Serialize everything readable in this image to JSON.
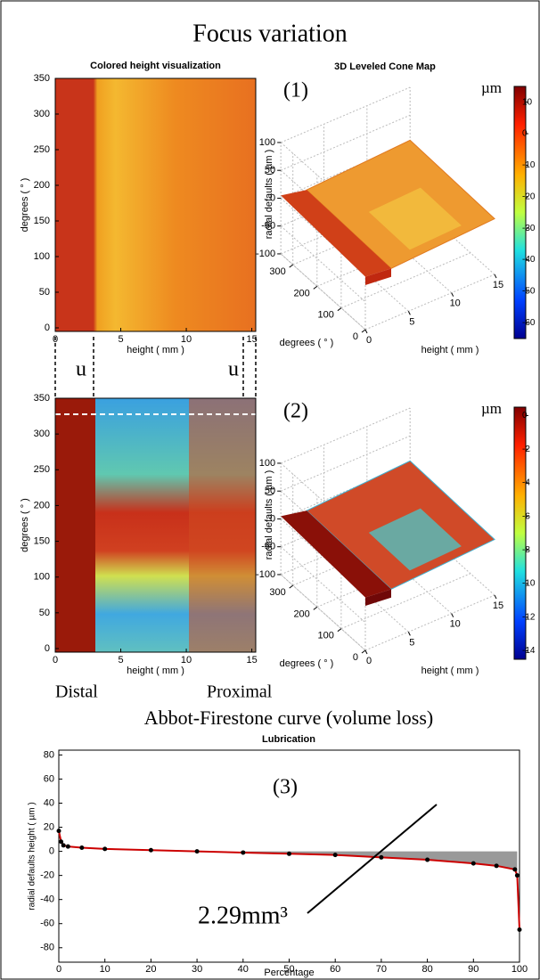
{
  "title": "Focus variation",
  "labels": {
    "distal": "Distal",
    "proximal": "Proximal",
    "u_left": "u",
    "u_right": "u"
  },
  "chart_data": [
    {
      "type": "heatmap",
      "title": "Colored height visualization",
      "xlabel": "height ( mm )",
      "ylabel": "degrees ( ° )",
      "xlim": [
        0,
        15.3
      ],
      "ylim": [
        -5,
        350
      ],
      "xticks": [
        0,
        5,
        10,
        15
      ],
      "yticks": [
        0,
        50,
        100,
        150,
        200,
        250,
        300,
        350
      ],
      "palette": "orange"
    },
    {
      "type": "surface3d",
      "title": "3D Leveled Cone Map",
      "label": "(1)",
      "zlabel": "radial defaults ( µm )",
      "xlabel": "height ( mm )",
      "ylabel": "degrees ( ° )",
      "xticks": [
        0,
        5,
        10,
        15
      ],
      "yticks": [
        0,
        100,
        200,
        300
      ],
      "zticks": [
        -100,
        -50,
        0,
        50,
        100
      ],
      "colorbar_label": "µm",
      "clim": [
        -65,
        15
      ],
      "cticks": [
        10,
        0,
        -10,
        -20,
        -30,
        -40,
        -50,
        -60
      ],
      "palette": "orange"
    },
    {
      "type": "heatmap",
      "xlabel": "height ( mm )",
      "ylabel": "degrees ( ° )",
      "xlim": [
        0,
        15.3
      ],
      "ylim": [
        -5,
        350
      ],
      "xticks": [
        0,
        5,
        10,
        15
      ],
      "yticks": [
        0,
        50,
        100,
        150,
        200,
        250,
        300,
        350
      ],
      "palette": "jet"
    },
    {
      "type": "surface3d",
      "label": "(2)",
      "zlabel": "radial defaults ( µm )",
      "xlabel": "height ( mm )",
      "ylabel": "degrees ( ° )",
      "xticks": [
        0,
        5,
        10,
        15
      ],
      "yticks": [
        0,
        100,
        200,
        300
      ],
      "zticks": [
        -100,
        -50,
        0,
        50,
        100
      ],
      "colorbar_label": "µm",
      "clim": [
        -14.5,
        0.5
      ],
      "cticks": [
        0,
        -2,
        -4,
        -6,
        -8,
        -10,
        -12,
        -14
      ],
      "palette": "jet"
    },
    {
      "type": "line",
      "suptitle": "Abbot-Firestone curve (volume loss)",
      "title": "Lubrication",
      "label": "(3)",
      "annotation": "2.29mm³",
      "xlabel": "Percentage",
      "ylabel": "radial defaults height ( µm )",
      "xlim": [
        0,
        100
      ],
      "ylim": [
        -92,
        84
      ],
      "xticks": [
        0,
        10,
        20,
        30,
        40,
        50,
        60,
        70,
        80,
        90,
        100
      ],
      "yticks": [
        -80,
        -60,
        -40,
        -20,
        0,
        20,
        40,
        60,
        80
      ],
      "x": [
        0,
        0.5,
        1,
        2,
        5,
        10,
        20,
        30,
        40,
        50,
        60,
        70,
        80,
        90,
        95,
        99,
        99.5,
        100
      ],
      "series": [
        {
          "color": "#cc0000",
          "values": [
            17,
            8,
            5,
            4,
            3,
            2,
            1,
            0,
            -1,
            -2,
            -3,
            -5,
            -7,
            -10,
            -12,
            -15,
            -20,
            -65
          ]
        }
      ]
    }
  ]
}
